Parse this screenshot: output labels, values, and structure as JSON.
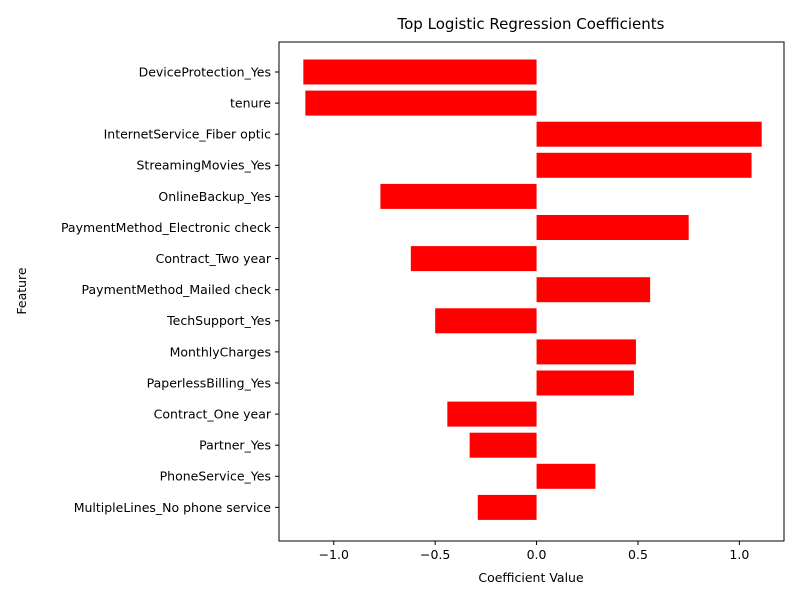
{
  "chart_data": {
    "type": "bar",
    "orientation": "horizontal",
    "title": "Top Logistic Regression Coefficients",
    "xlabel": "Coefficient Value",
    "ylabel": "Feature",
    "xlim": [
      -1.27,
      1.22
    ],
    "xticks": [
      -1.0,
      -0.5,
      0.0,
      0.5,
      1.0
    ],
    "xtick_labels": [
      "−1.0",
      "−0.5",
      "0.0",
      "0.5",
      "1.0"
    ],
    "bar_color": "#ff0000",
    "grid": false,
    "categories": [
      "DeviceProtection_Yes",
      "tenure",
      "InternetService_Fiber optic",
      "StreamingMovies_Yes",
      "OnlineBackup_Yes",
      "PaymentMethod_Electronic check",
      "Contract_Two year",
      "PaymentMethod_Mailed check",
      "TechSupport_Yes",
      "MonthlyCharges",
      "PaperlessBilling_Yes",
      "Contract_One year",
      "Partner_Yes",
      "PhoneService_Yes",
      "MultipleLines_No phone service"
    ],
    "values": [
      -1.15,
      -1.14,
      1.11,
      1.06,
      -0.77,
      0.75,
      -0.62,
      0.56,
      -0.5,
      0.49,
      0.48,
      -0.44,
      -0.33,
      0.29,
      -0.29
    ]
  }
}
